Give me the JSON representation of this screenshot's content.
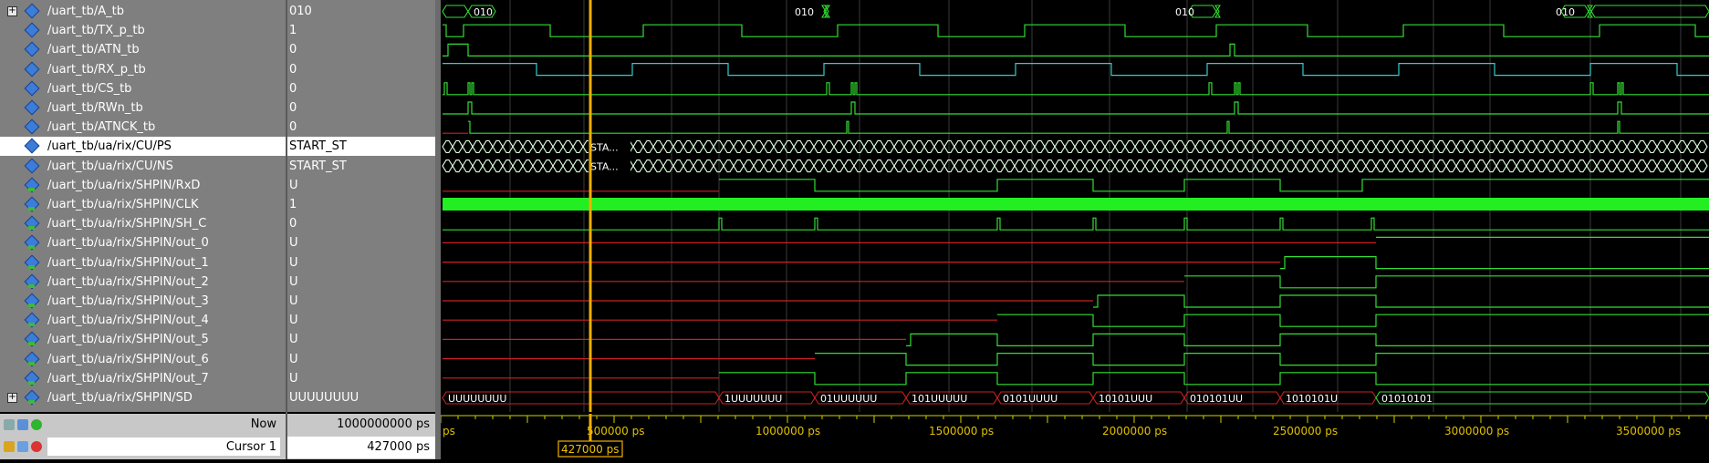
{
  "signals": [
    {
      "name": "/uart_tb/A_tb",
      "value": "010",
      "expandable": true,
      "kind": "plain"
    },
    {
      "name": "/uart_tb/TX_p_tb",
      "value": "1",
      "kind": "plain"
    },
    {
      "name": "/uart_tb/ATN_tb",
      "value": "0",
      "kind": "plain"
    },
    {
      "name": "/uart_tb/RX_p_tb",
      "value": "0",
      "kind": "plain"
    },
    {
      "name": "/uart_tb/CS_tb",
      "value": "0",
      "kind": "plain"
    },
    {
      "name": "/uart_tb/RWn_tb",
      "value": "0",
      "kind": "plain"
    },
    {
      "name": "/uart_tb/ATNCK_tb",
      "value": "0",
      "kind": "plain"
    },
    {
      "name": "/uart_tb/ua/rix/CU/PS",
      "value": "START_ST",
      "kind": "plain",
      "selected": true
    },
    {
      "name": "/uart_tb/ua/rix/CU/NS",
      "value": "START_ST",
      "kind": "plain"
    },
    {
      "name": "/uart_tb/ua/rix/SHPIN/RxD",
      "value": "U",
      "kind": "port"
    },
    {
      "name": "/uart_tb/ua/rix/SHPIN/CLK",
      "value": "1",
      "kind": "port"
    },
    {
      "name": "/uart_tb/ua/rix/SHPIN/SH_C",
      "value": "0",
      "kind": "port"
    },
    {
      "name": "/uart_tb/ua/rix/SHPIN/out_0",
      "value": "U",
      "kind": "port"
    },
    {
      "name": "/uart_tb/ua/rix/SHPIN/out_1",
      "value": "U",
      "kind": "port"
    },
    {
      "name": "/uart_tb/ua/rix/SHPIN/out_2",
      "value": "U",
      "kind": "port"
    },
    {
      "name": "/uart_tb/ua/rix/SHPIN/out_3",
      "value": "U",
      "kind": "port"
    },
    {
      "name": "/uart_tb/ua/rix/SHPIN/out_4",
      "value": "U",
      "kind": "port"
    },
    {
      "name": "/uart_tb/ua/rix/SHPIN/out_5",
      "value": "U",
      "kind": "port"
    },
    {
      "name": "/uart_tb/ua/rix/SHPIN/out_6",
      "value": "U",
      "kind": "port"
    },
    {
      "name": "/uart_tb/ua/rix/SHPIN/out_7",
      "value": "U",
      "kind": "port"
    },
    {
      "name": "/uart_tb/ua/rix/SHPIN/SD",
      "value": "UUUUUUUU",
      "expandable": true,
      "kind": "port"
    }
  ],
  "bus_labels": {
    "a_tb": "010",
    "state": "STA...",
    "sd_initial": "UUUUUUUU",
    "sd": [
      "1UUUUUUU",
      "01UUUUUU",
      "101UUUUU",
      "0101UUUU",
      "10101UUU",
      "010101UU",
      "1010101U",
      "01010101"
    ]
  },
  "footer": {
    "now_label": "Now",
    "now_value": "1000000000 ps",
    "cursor_label": "Cursor 1",
    "cursor_value": "427000 ps",
    "cursor_flag": "427000 ps"
  },
  "timeline": {
    "first_label": "ps",
    "labels": [
      "500000 ps",
      "1000000 ps",
      "1500000 ps",
      "2000000 ps",
      "2500000 ps",
      "3000000 ps",
      "3500000 ps"
    ]
  },
  "colors": {
    "wave": "#33dd33",
    "cyan": "#33cccc",
    "undefined": "#cc2222",
    "cursor": "#f0b000",
    "grid": "#3a3a3a",
    "clk": "#22ee22"
  },
  "icons": [
    "expand-icon",
    "signal-diamond-icon",
    "lock-icon",
    "add-cursor-icon",
    "delete-cursor-icon",
    "zoom-icon"
  ]
}
